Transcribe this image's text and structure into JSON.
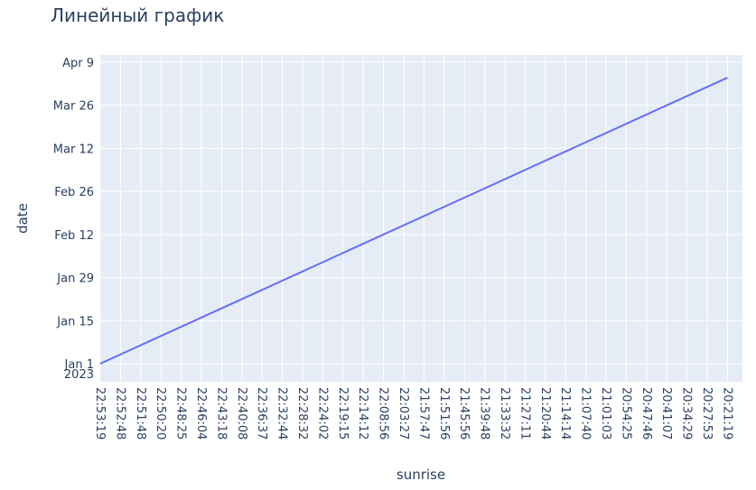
{
  "chart_data": {
    "type": "line",
    "title": "Линейный график",
    "xlabel": "sunrise",
    "ylabel": "date",
    "x_ticks": [
      "22:53:19",
      "22:52:48",
      "22:51:48",
      "22:50:20",
      "22:48:25",
      "22:46:04",
      "22:43:18",
      "22:40:08",
      "22:36:37",
      "22:32:44",
      "22:28:32",
      "22:24:02",
      "22:19:15",
      "22:14:12",
      "22:08:56",
      "22:03:27",
      "21:57:47",
      "21:51:56",
      "21:45:56",
      "21:39:48",
      "21:33:32",
      "21:27:11",
      "21:20:44",
      "21:14:14",
      "21:07:40",
      "21:01:03",
      "20:54:25",
      "20:47:46",
      "20:41:07",
      "20:34:29",
      "20:27:53",
      "20:21:19"
    ],
    "y_ticks": [
      {
        "date": "2023-01-01",
        "label": "Jan 1",
        "sub": "2023"
      },
      {
        "date": "2023-01-15",
        "label": "Jan 15"
      },
      {
        "date": "2023-01-29",
        "label": "Jan 29"
      },
      {
        "date": "2023-02-12",
        "label": "Feb 12"
      },
      {
        "date": "2023-02-26",
        "label": "Feb 26"
      },
      {
        "date": "2023-03-12",
        "label": "Mar 12"
      },
      {
        "date": "2023-03-26",
        "label": "Mar 26"
      },
      {
        "date": "2023-04-09",
        "label": "Apr 9"
      }
    ],
    "ylim": [
      "2023-01-01",
      "2023-04-09"
    ],
    "series": [
      {
        "x": [
          "22:53:19",
          "20:21:19"
        ],
        "y": [
          "2023-01-01",
          "2023-04-04"
        ]
      }
    ],
    "grid": true,
    "colors": {
      "plot_bg": "#e5ecf6",
      "grid": "#ffffff",
      "line": "#636efa",
      "text": "#2a3f5f"
    }
  }
}
